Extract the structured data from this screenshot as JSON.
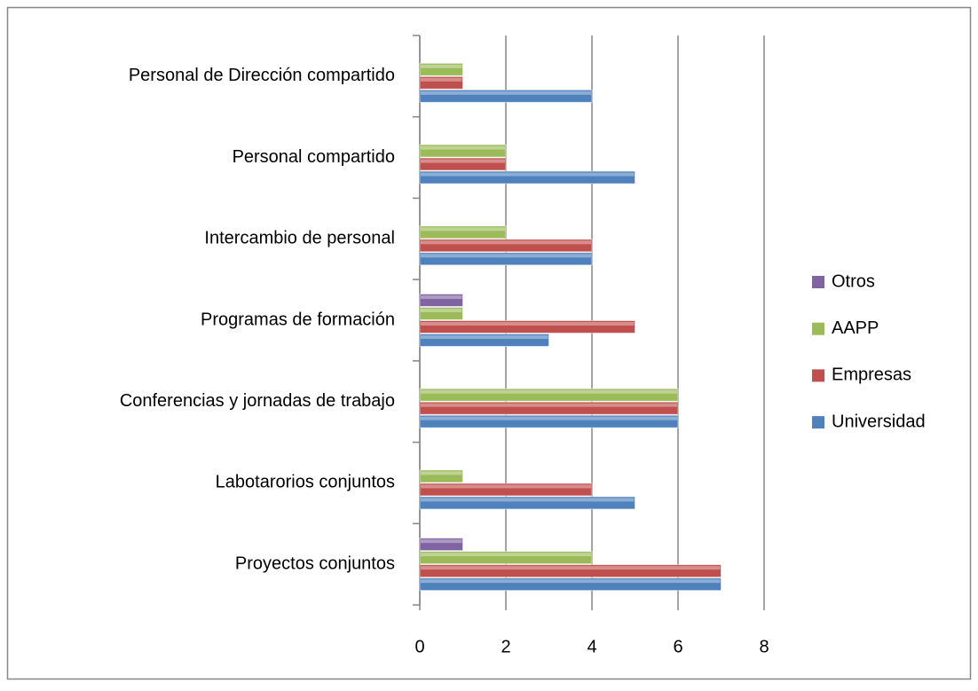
{
  "chart_data": {
    "type": "barh",
    "categories": [
      "Proyectos conjuntos",
      "Labotarorios conjuntos",
      "Conferencias y jornadas de trabajo",
      "Programas de formación",
      "Intercambio de personal",
      "Personal compartido",
      "Personal de Dirección compartido"
    ],
    "series": [
      {
        "name": "Universidad",
        "color": "#4f81bd",
        "values": [
          7,
          5,
          6,
          3,
          4,
          5,
          4
        ]
      },
      {
        "name": "Empresas",
        "color": "#c0504d",
        "values": [
          7,
          4,
          6,
          5,
          4,
          2,
          1
        ]
      },
      {
        "name": "AAPP",
        "color": "#9bbb59",
        "values": [
          4,
          1,
          6,
          1,
          2,
          2,
          1
        ]
      },
      {
        "name": "Otros",
        "color": "#8064a2",
        "values": [
          1,
          null,
          null,
          1,
          null,
          null,
          null
        ]
      }
    ],
    "xlim": [
      0,
      8
    ],
    "xticks": [
      0,
      2,
      4,
      6,
      8
    ],
    "grid": true,
    "legend": "right"
  }
}
